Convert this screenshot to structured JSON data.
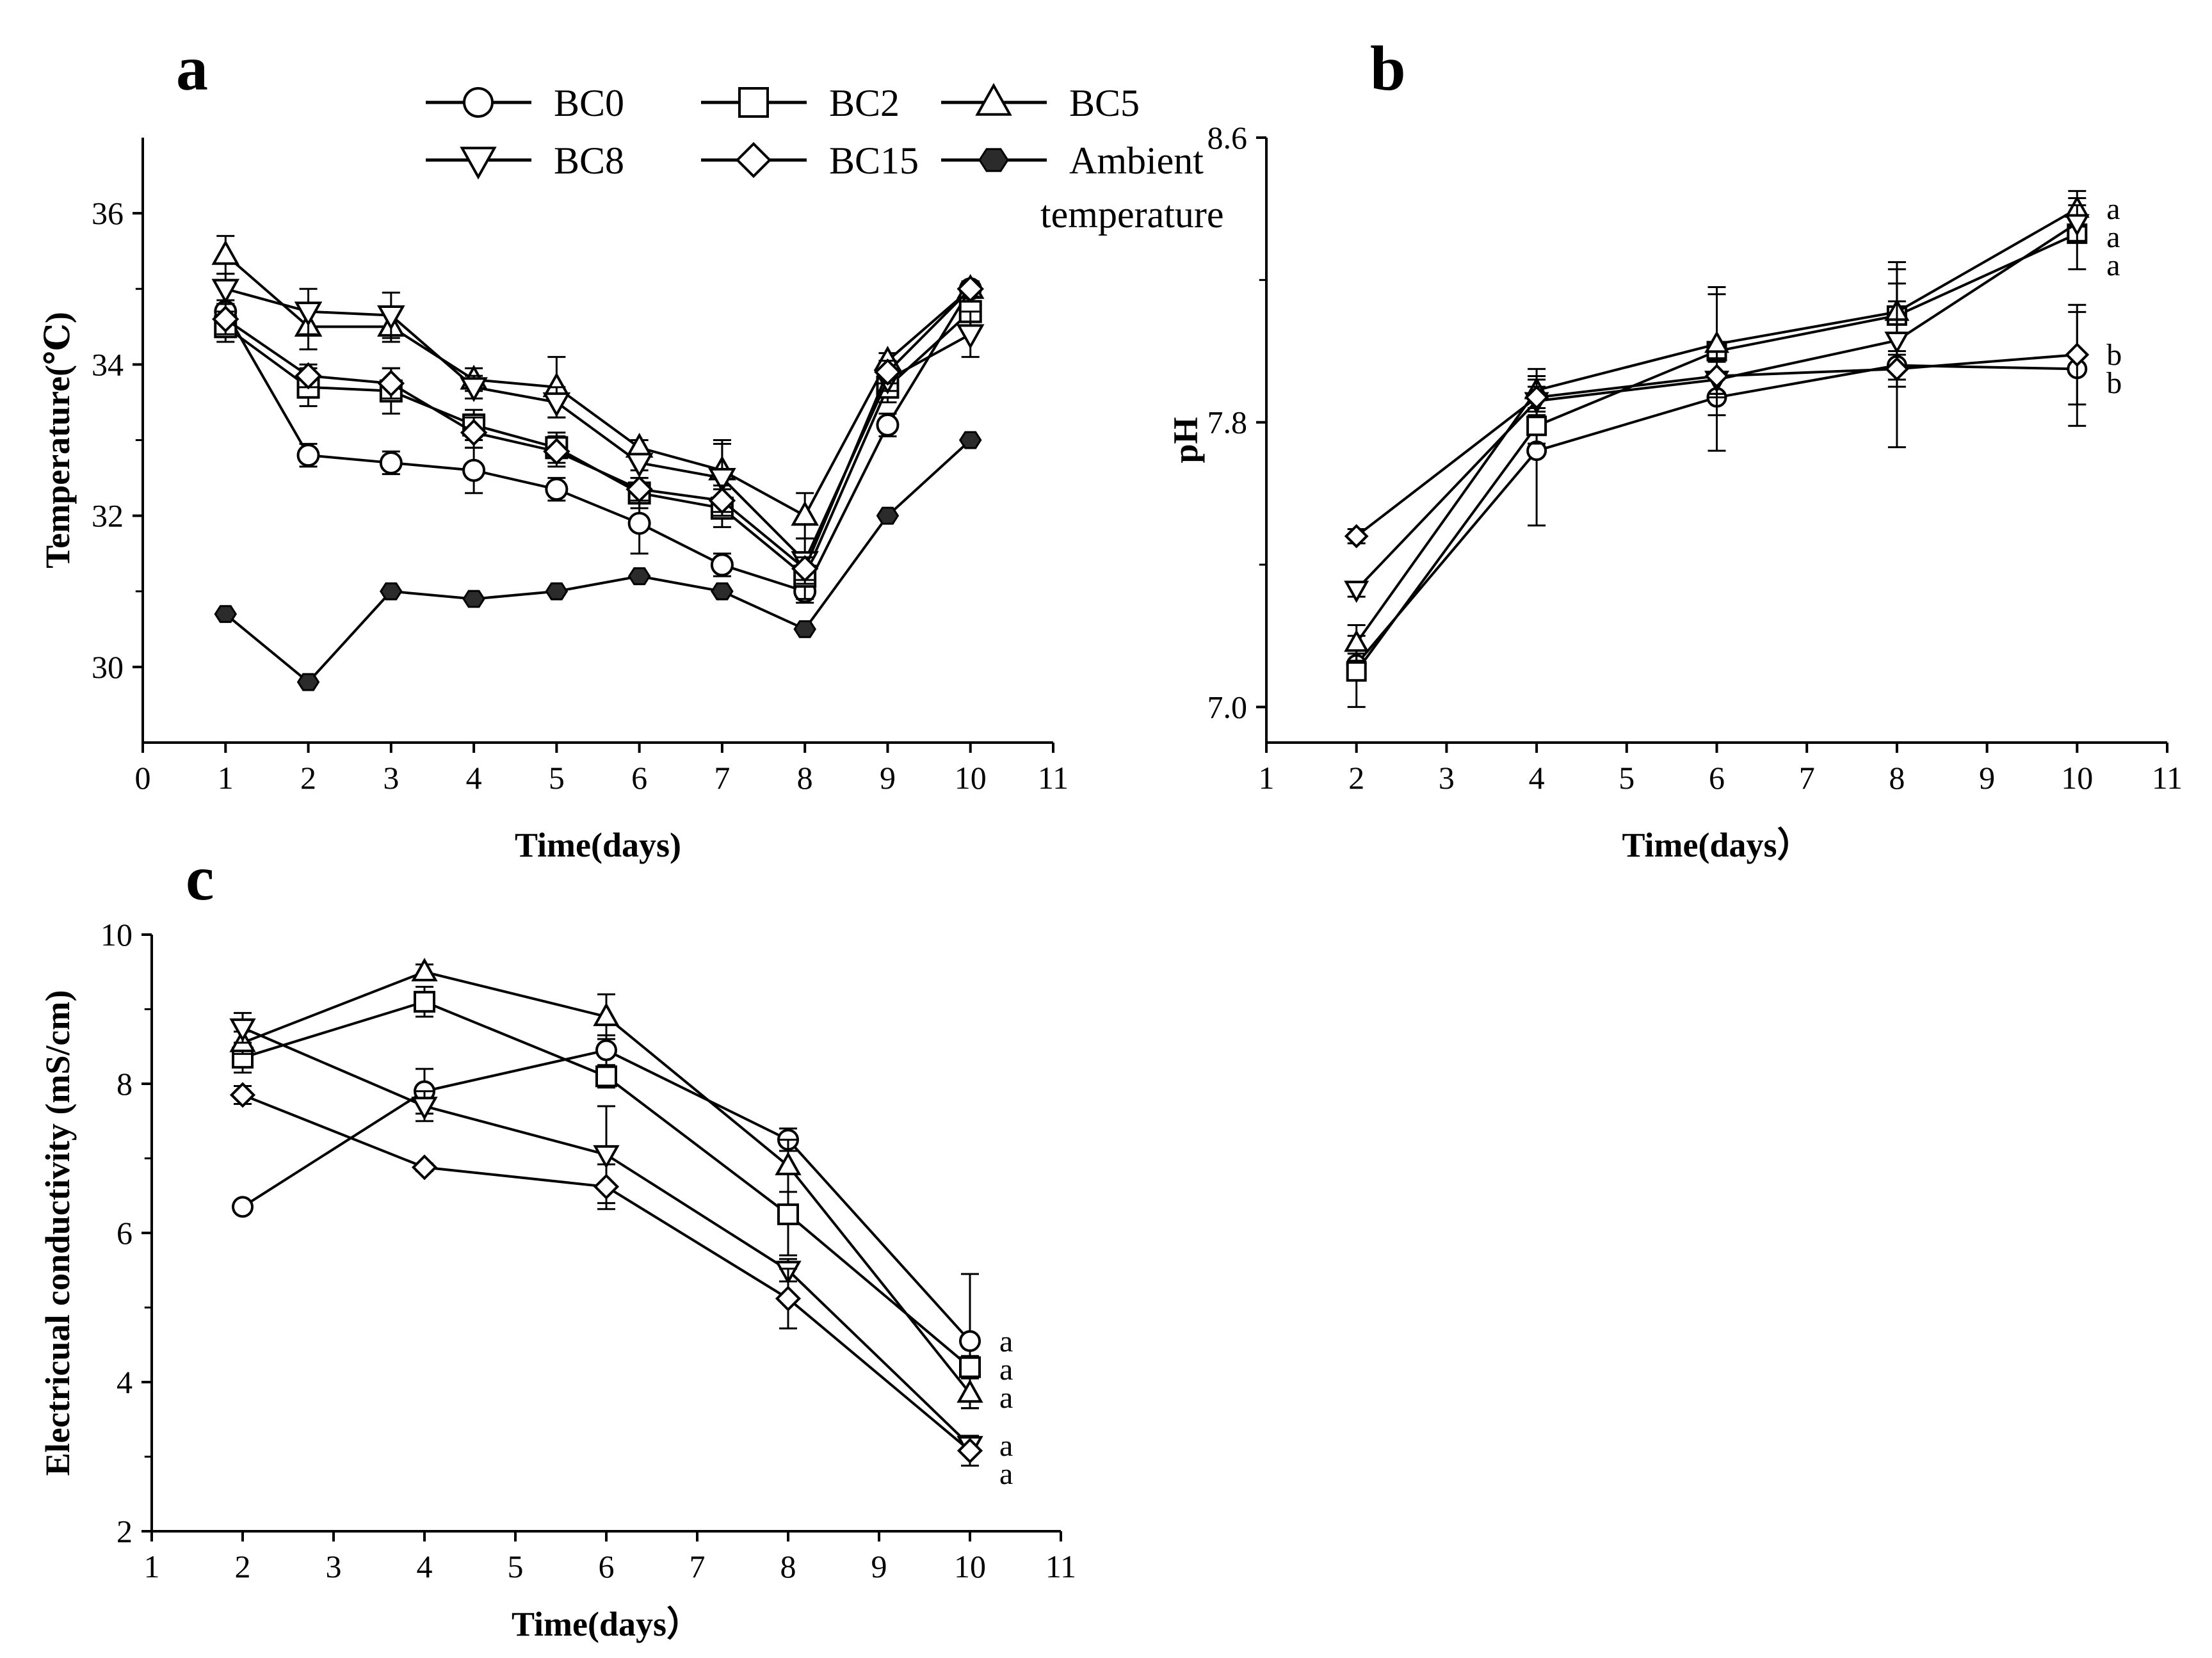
{
  "chart_data": [
    {
      "panel": "a",
      "type": "line",
      "xlabel": "Time(days)",
      "ylabel": "Temperature(℃)",
      "xlim": [
        0,
        11
      ],
      "ylim": [
        29,
        37
      ],
      "xticks": [
        "0",
        "1",
        "2",
        "3",
        "4",
        "5",
        "6",
        "7",
        "8",
        "9",
        "10",
        "11"
      ],
      "yticks": [
        "30",
        "32",
        "34",
        "36"
      ],
      "x": [
        1,
        2,
        3,
        4,
        5,
        6,
        7,
        8,
        9,
        10
      ],
      "series": [
        {
          "name": "BC0",
          "marker": "circle",
          "values": [
            34.7,
            32.8,
            32.7,
            32.6,
            32.35,
            31.9,
            31.35,
            31.0,
            33.2,
            35.0
          ],
          "errors": [
            0.15,
            0.15,
            0.15,
            0.3,
            0.15,
            0.4,
            0.15,
            0.15,
            0.15,
            0.1
          ]
        },
        {
          "name": "BC2",
          "marker": "square",
          "values": [
            34.5,
            33.7,
            33.65,
            33.2,
            32.9,
            32.3,
            32.1,
            31.2,
            33.7,
            34.7
          ],
          "errors": [
            0.2,
            0.25,
            0.3,
            0.2,
            0.2,
            0.2,
            0.25,
            0.3,
            0.2,
            0.2
          ]
        },
        {
          "name": "BC5",
          "marker": "triangle-up",
          "values": [
            35.45,
            34.5,
            34.5,
            33.8,
            33.7,
            32.9,
            32.6,
            32.0,
            34.05,
            35.0
          ],
          "errors": [
            0.25,
            0.3,
            0.2,
            0.15,
            0.4,
            0.1,
            0.4,
            0.3,
            0.1,
            0.1
          ]
        },
        {
          "name": "BC8",
          "marker": "triangle-down",
          "values": [
            35.0,
            34.7,
            34.65,
            33.7,
            33.5,
            32.7,
            32.5,
            31.4,
            33.8,
            34.4
          ],
          "errors": [
            0.2,
            0.3,
            0.3,
            0.15,
            0.2,
            0.1,
            0.45,
            0.3,
            0.15,
            0.3
          ]
        },
        {
          "name": "BC15",
          "marker": "diamond",
          "values": [
            34.6,
            33.85,
            33.75,
            33.1,
            32.85,
            32.35,
            32.2,
            31.3,
            33.9,
            35.0
          ],
          "errors": [
            0.2,
            0.15,
            0.2,
            0.2,
            0.2,
            0.15,
            0.2,
            0.15,
            0.15,
            0.1
          ]
        },
        {
          "name": "Ambient temperature",
          "marker": "hexagon-filled",
          "values": [
            30.7,
            29.8,
            31.0,
            30.9,
            31.0,
            31.2,
            31.0,
            30.5,
            32.0,
            33.0
          ],
          "errors": [
            0,
            0,
            0,
            0,
            0,
            0,
            0,
            0,
            0,
            0
          ]
        }
      ]
    },
    {
      "panel": "b",
      "type": "line",
      "xlabel": "Time(days）",
      "ylabel": "pH",
      "xlim": [
        1,
        11
      ],
      "ylim": [
        6.9,
        8.6
      ],
      "xticks": [
        "1",
        "2",
        "3",
        "4",
        "5",
        "6",
        "7",
        "8",
        "9",
        "10",
        "11"
      ],
      "yticks": [
        "7.0",
        "7.8",
        "8.6"
      ],
      "x": [
        2,
        4,
        6,
        8,
        10
      ],
      "series": [
        {
          "name": "BC0",
          "marker": "circle",
          "values": [
            7.12,
            7.72,
            7.87,
            7.96,
            7.95
          ],
          "errors": [
            0.03,
            0.21,
            0.15,
            0.23,
            0.16
          ],
          "sig": "b"
        },
        {
          "name": "BC2",
          "marker": "square",
          "values": [
            7.1,
            7.79,
            8.0,
            8.1,
            8.33
          ],
          "errors": [
            0.1,
            0.05,
            0.18,
            0.15,
            0.1
          ],
          "sig": "a"
        },
        {
          "name": "BC5",
          "marker": "triangle-up",
          "values": [
            7.18,
            7.89,
            8.02,
            8.11,
            8.4
          ],
          "errors": [
            0.05,
            0.06,
            0.14,
            0.12,
            0.05
          ],
          "sig": "a"
        },
        {
          "name": "BC8",
          "marker": "triangle-down",
          "values": [
            7.33,
            7.86,
            7.92,
            8.03,
            8.36
          ],
          "errors": [
            0.02,
            0.04,
            0.05,
            0.11,
            0.05
          ],
          "sig": "a"
        },
        {
          "name": "BC15",
          "marker": "diamond",
          "values": [
            7.48,
            7.87,
            7.93,
            7.95,
            7.99
          ],
          "errors": [
            0.02,
            0.05,
            0.05,
            0.05,
            0.14
          ],
          "sig": "b"
        }
      ]
    },
    {
      "panel": "c",
      "type": "line",
      "xlabel": "Time(days）",
      "ylabel": "Electricual  conductivity (mS/cm)",
      "xlim": [
        1,
        11
      ],
      "ylim": [
        2,
        10
      ],
      "xticks": [
        "1",
        "2",
        "3",
        "4",
        "5",
        "6",
        "7",
        "8",
        "9",
        "10",
        "11"
      ],
      "yticks": [
        "2",
        "4",
        "6",
        "8",
        "10"
      ],
      "x": [
        2,
        4,
        6,
        8,
        10
      ],
      "series": [
        {
          "name": "BC0",
          "marker": "circle",
          "values": [
            6.35,
            7.9,
            8.45,
            7.25,
            4.55
          ],
          "errors": [
            0.05,
            0.3,
            0.2,
            0.15,
            0.9
          ],
          "sig": "a"
        },
        {
          "name": "BC2",
          "marker": "square",
          "values": [
            8.35,
            9.1,
            8.1,
            6.25,
            4.2
          ],
          "errors": [
            0.2,
            0.2,
            0.15,
            0.55,
            0.15
          ],
          "sig": "a"
        },
        {
          "name": "BC5",
          "marker": "triangle-up",
          "values": [
            8.55,
            9.5,
            8.9,
            6.9,
            3.85
          ],
          "errors": [
            0.15,
            0.1,
            0.3,
            0.35,
            0.2
          ],
          "sig": "a"
        },
        {
          "name": "BC8",
          "marker": "triangle-down",
          "values": [
            8.75,
            7.7,
            7.05,
            5.5,
            3.15
          ],
          "errors": [
            0.2,
            0.2,
            0.65,
            0.15,
            0.1
          ],
          "sig": "a"
        },
        {
          "name": "BC15",
          "marker": "diamond",
          "values": [
            7.85,
            6.88,
            6.62,
            5.12,
            3.08
          ],
          "errors": [
            0.12,
            0.05,
            0.3,
            0.4,
            0.2
          ],
          "sig": "a"
        }
      ]
    }
  ],
  "legend": {
    "items": [
      {
        "label": "BC0",
        "marker": "circle"
      },
      {
        "label": "BC2",
        "marker": "square"
      },
      {
        "label": "BC5",
        "marker": "triangle-up"
      },
      {
        "label": "BC8",
        "marker": "triangle-down"
      },
      {
        "label": "BC15",
        "marker": "diamond"
      },
      {
        "label": "Ambient",
        "label_line2": "temperature",
        "marker": "hexagon-filled"
      }
    ]
  },
  "colors": {
    "ink": "#000000",
    "ambient_fill": "#2b2b2b",
    "background": "#ffffff"
  }
}
